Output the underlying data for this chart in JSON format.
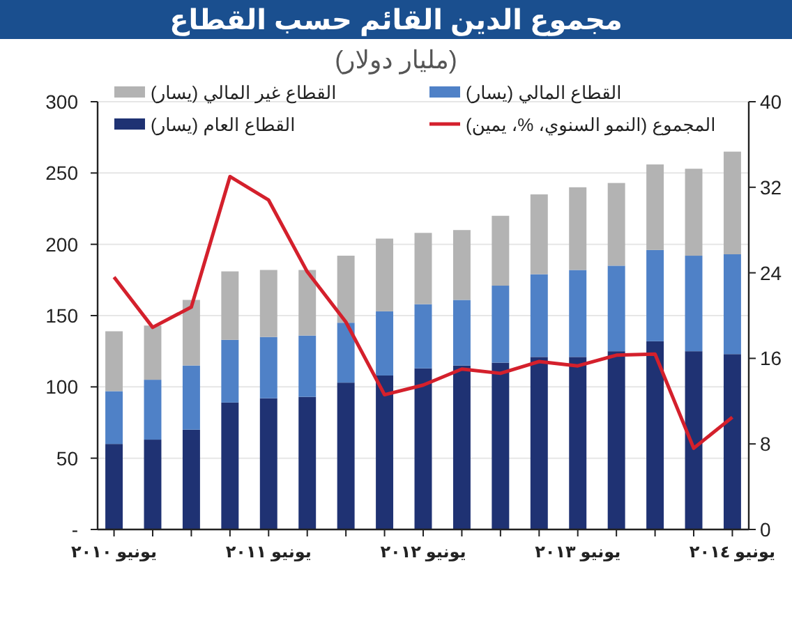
{
  "chart_data": {
    "type": "bar",
    "stacked": true,
    "title": "مجموع الدين القائم حسب القطاع",
    "subtitle": "(مليار دولار)",
    "categories": [
      "يونيو ٢٠١٠",
      null,
      null,
      null,
      "يونيو ٢٠١١",
      null,
      null,
      null,
      "يونيو ٢٠١٢",
      null,
      null,
      null,
      "يونيو ٢٠١٣",
      null,
      null,
      null,
      "يونيو ٢٠١٤"
    ],
    "series": [
      {
        "name": "القطاع العام (يسار)",
        "color": "#1f3273",
        "values": [
          60,
          63,
          70,
          89,
          92,
          93,
          103,
          108,
          113,
          115,
          117,
          121,
          121,
          125,
          132,
          125,
          123
        ]
      },
      {
        "name": "القطاع المالي (يسار)",
        "color": "#4f81c7",
        "values": [
          37,
          42,
          45,
          44,
          43,
          43,
          42,
          45,
          45,
          46,
          54,
          58,
          61,
          60,
          64,
          67,
          70
        ]
      },
      {
        "name": "القطاع غير المالي (يسار)",
        "color": "#b3b3b3",
        "values": [
          42,
          38,
          46,
          48,
          47,
          46,
          47,
          51,
          50,
          49,
          49,
          56,
          58,
          58,
          60,
          61,
          72
        ]
      },
      {
        "name": "المجموع (النمو السنوي، %، يمين)",
        "type": "line",
        "axis": "y2",
        "color": "#d4202c",
        "values": [
          23.6,
          18.9,
          20.8,
          33.0,
          30.8,
          24.1,
          19.4,
          12.6,
          13.5,
          15.0,
          14.6,
          15.7,
          15.3,
          16.3,
          16.4,
          7.6,
          10.5
        ]
      }
    ],
    "ylim": [
      0,
      300
    ],
    "yticks": [
      {
        "value": 0,
        "label": "-"
      },
      50,
      100,
      150,
      200,
      250,
      300
    ],
    "y2lim": [
      0,
      40
    ],
    "y2ticks": [
      0,
      8,
      16,
      24,
      32,
      40
    ],
    "grid": "y",
    "legend": "top"
  }
}
